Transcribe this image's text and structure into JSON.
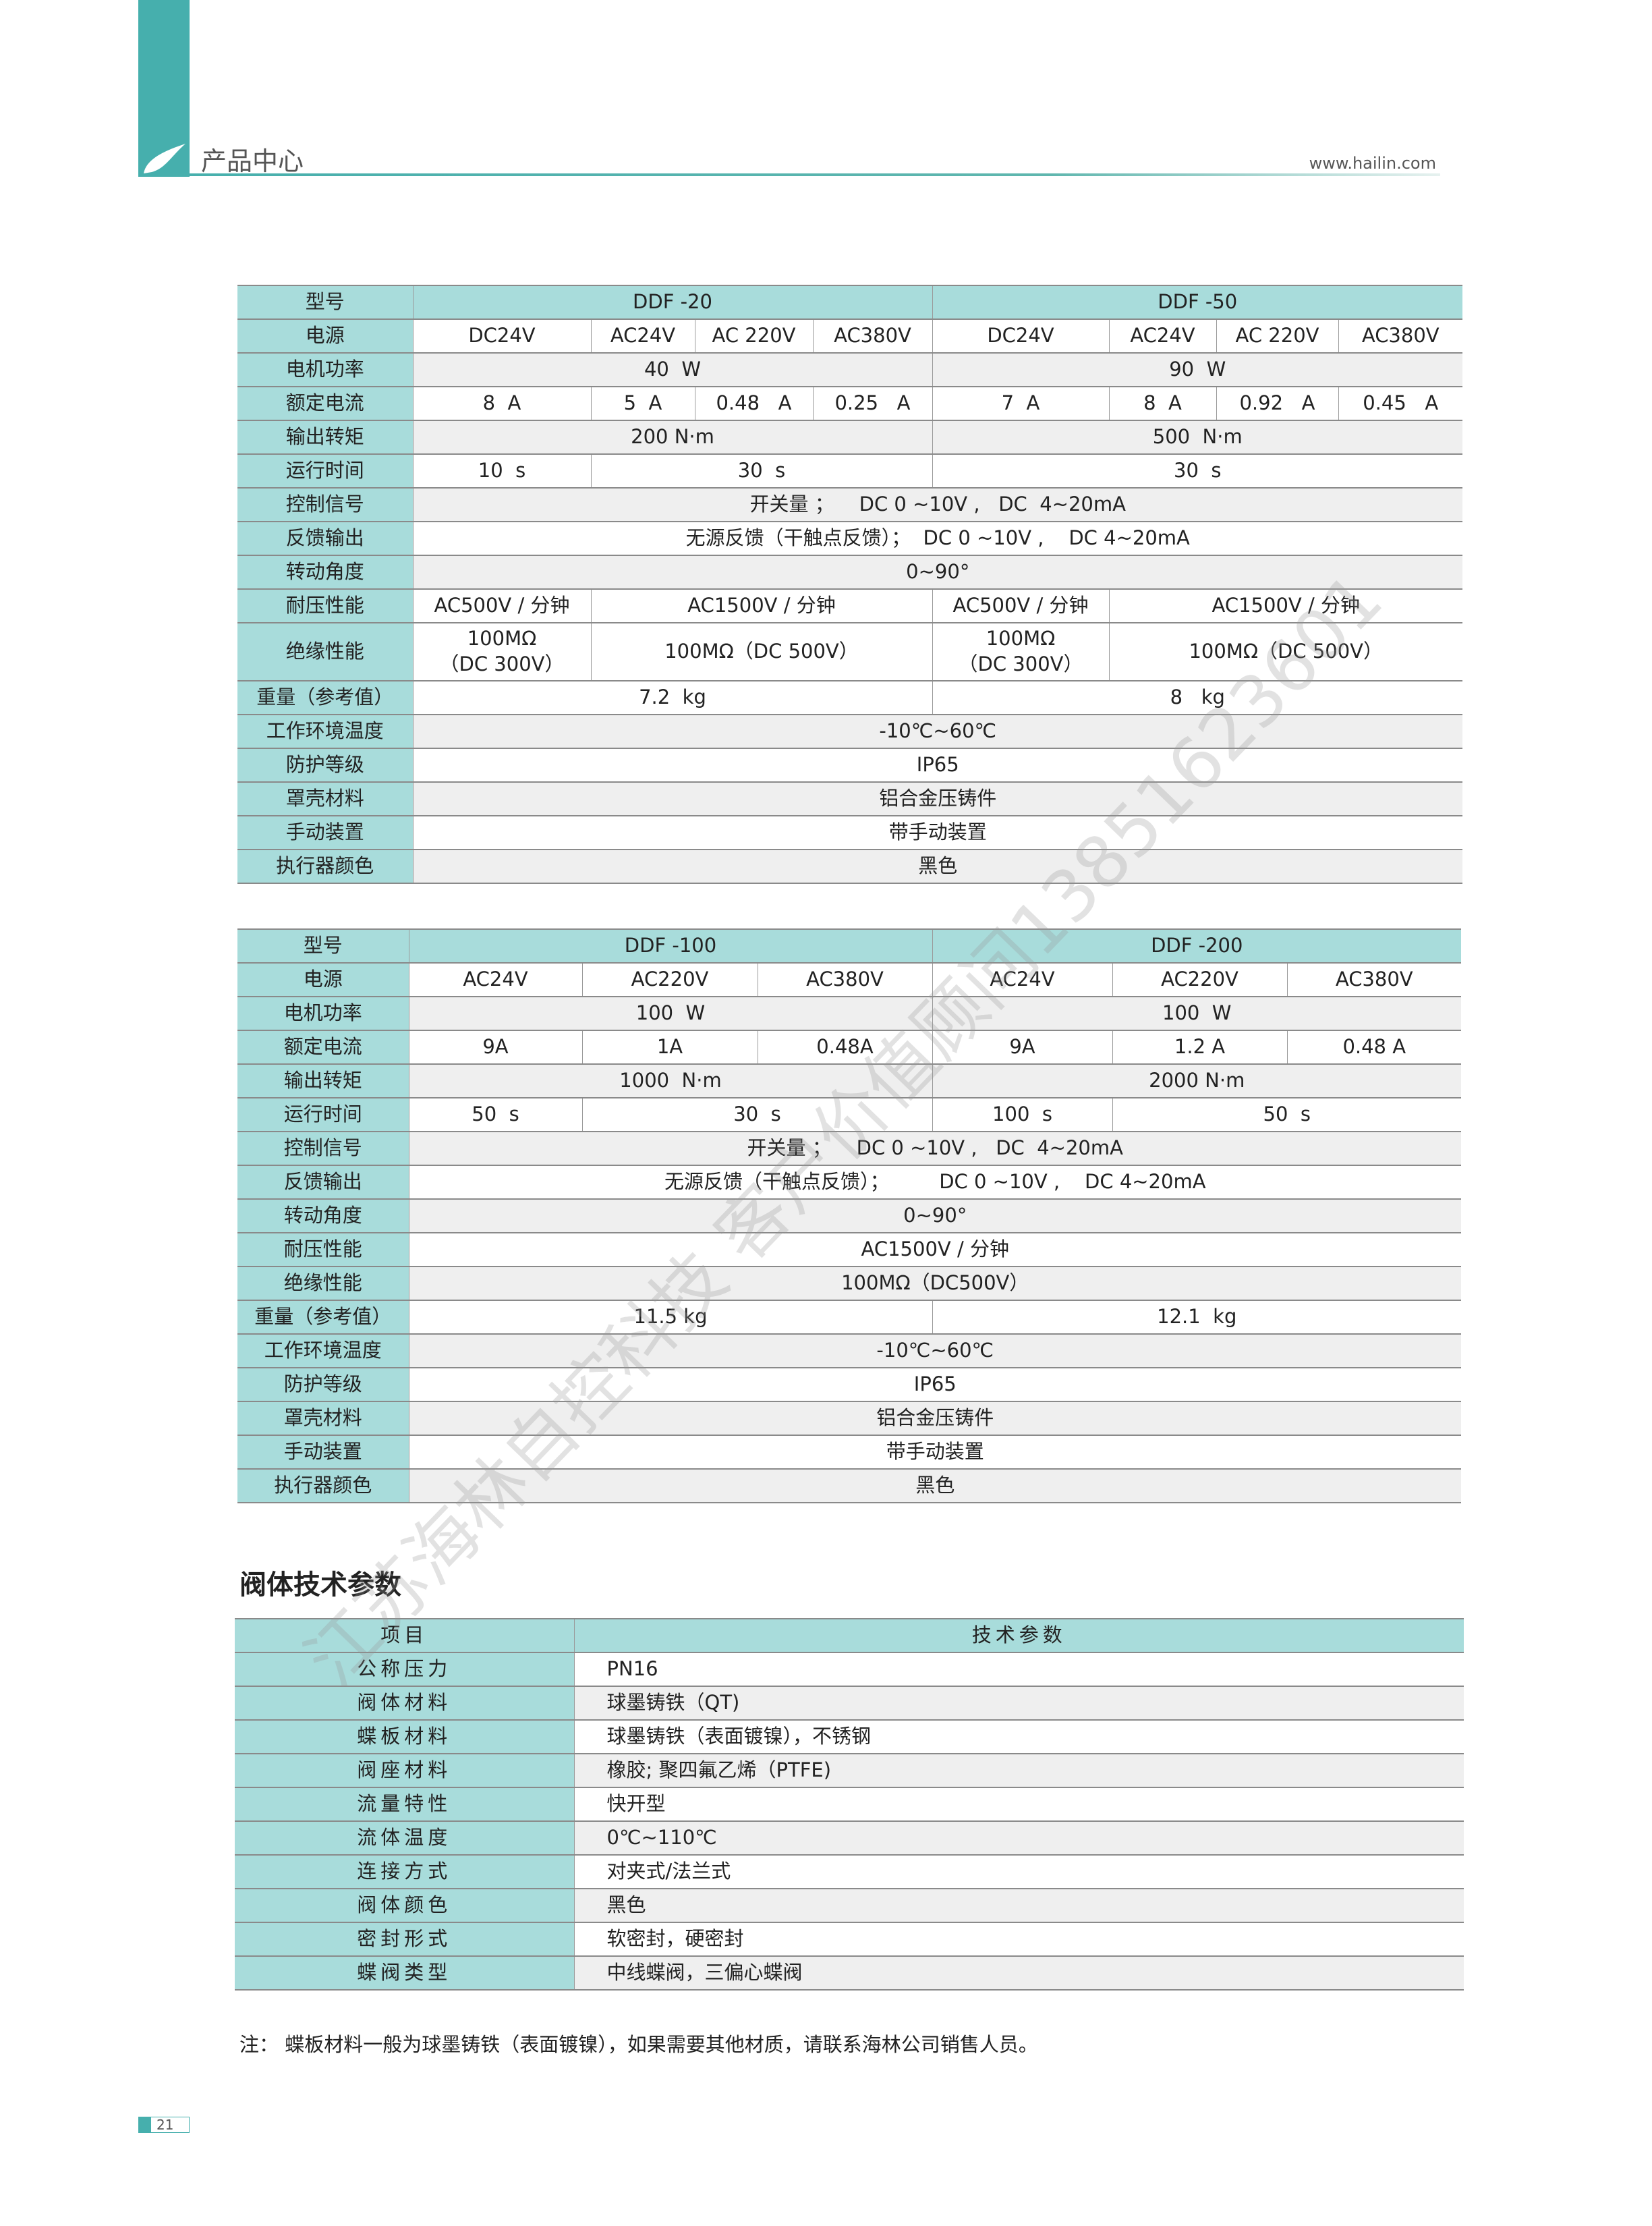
{
  "header": {
    "section": "产品中心",
    "website": "www.hailin.com"
  },
  "colors": {
    "accent": "#46afad",
    "label_bg": "#a8dcdb",
    "stripe": "#efefef"
  },
  "table1": {
    "rows": [
      {
        "label": "型号",
        "cls": "hd",
        "cells": [
          {
            "t": "DDF -20",
            "s": 4
          },
          {
            "t": "DDF -50",
            "s": 4
          }
        ]
      },
      {
        "label": "电源",
        "cells": [
          {
            "t": "DC24V"
          },
          {
            "t": "AC24V"
          },
          {
            "t": "AC 220V"
          },
          {
            "t": "AC380V"
          },
          {
            "t": "DC24V"
          },
          {
            "t": "AC24V"
          },
          {
            "t": "AC 220V"
          },
          {
            "t": "AC380V"
          }
        ]
      },
      {
        "label": "电机功率",
        "cls": "g",
        "cells": [
          {
            "t": "40  W",
            "s": 4
          },
          {
            "t": "90  W",
            "s": 4
          }
        ]
      },
      {
        "label": "额定电流",
        "cells": [
          {
            "t": "8  A"
          },
          {
            "t": "5  A"
          },
          {
            "t": "0.48   A"
          },
          {
            "t": "0.25   A"
          },
          {
            "t": "7  A"
          },
          {
            "t": "8  A"
          },
          {
            "t": "0.92   A"
          },
          {
            "t": "0.45   A"
          }
        ]
      },
      {
        "label": "输出转矩",
        "cls": "g",
        "cells": [
          {
            "t": "200 N·m",
            "s": 4
          },
          {
            "t": "500  N·m",
            "s": 4
          }
        ]
      },
      {
        "label": "运行时间",
        "cells": [
          {
            "t": "10  s"
          },
          {
            "t": "30  s",
            "s": 3
          },
          {
            "t": "30  s",
            "s": 4
          }
        ]
      },
      {
        "label": "控制信号",
        "cls": "g",
        "cells": [
          {
            "t": "开关量 ；    DC 0 ~10V ,   DC  4~20mA",
            "s": 8
          }
        ]
      },
      {
        "label": "反馈输出",
        "cells": [
          {
            "t": "无源反馈（干触点反馈）；  DC 0 ~10V ,    DC 4~20mA",
            "s": 8
          }
        ]
      },
      {
        "label": "转动角度",
        "cls": "g",
        "cells": [
          {
            "t": "0~90°",
            "s": 8
          }
        ]
      },
      {
        "label": "耐压性能",
        "cells": [
          {
            "t": "AC500V / 分钟"
          },
          {
            "t": "AC1500V / 分钟",
            "s": 3
          },
          {
            "t": "AC500V / 分钟"
          },
          {
            "t": "AC1500V / 分钟",
            "s": 3
          }
        ]
      },
      {
        "label": "绝缘性能",
        "tall": true,
        "cells": [
          {
            "t": "100MΩ\n（DC 300V）"
          },
          {
            "t": "100MΩ（DC 500V）",
            "s": 3
          },
          {
            "t": "100MΩ\n（DC 300V）"
          },
          {
            "t": "100MΩ（DC 500V）",
            "s": 3
          }
        ]
      },
      {
        "label": "重量（参考值）",
        "cells": [
          {
            "t": "7.2  kg",
            "s": 4
          },
          {
            "t": "8   kg",
            "s": 4
          }
        ]
      },
      {
        "label": "工作环境温度",
        "cls": "g",
        "cells": [
          {
            "t": "-10℃~60℃",
            "s": 8
          }
        ]
      },
      {
        "label": "防护等级",
        "cells": [
          {
            "t": "IP65",
            "s": 8
          }
        ]
      },
      {
        "label": "罩壳材料",
        "cls": "g",
        "cells": [
          {
            "t": "铝合金压铸件",
            "s": 8
          }
        ]
      },
      {
        "label": "手动装置",
        "cells": [
          {
            "t": "带手动装置",
            "s": 8
          }
        ]
      },
      {
        "label": "执行器颜色",
        "cls": "g",
        "cells": [
          {
            "t": "黑色",
            "s": 8
          }
        ]
      }
    ]
  },
  "table2": {
    "rows": [
      {
        "label": "型号",
        "cls": "hd",
        "cells": [
          {
            "t": "DDF -100",
            "s": 3
          },
          {
            "t": "DDF -200",
            "s": 3
          }
        ]
      },
      {
        "label": "电源",
        "cells": [
          {
            "t": "AC24V"
          },
          {
            "t": "AC220V"
          },
          {
            "t": "AC380V"
          },
          {
            "t": "AC24V"
          },
          {
            "t": "AC220V"
          },
          {
            "t": "AC380V"
          }
        ]
      },
      {
        "label": "电机功率",
        "cls": "g",
        "cells": [
          {
            "t": "100  W",
            "s": 3
          },
          {
            "t": "100  W",
            "s": 3
          }
        ]
      },
      {
        "label": "额定电流",
        "cells": [
          {
            "t": "9A"
          },
          {
            "t": "1A"
          },
          {
            "t": "0.48A"
          },
          {
            "t": "9A"
          },
          {
            "t": "1.2 A"
          },
          {
            "t": "0.48 A"
          }
        ]
      },
      {
        "label": "输出转矩",
        "cls": "g",
        "cells": [
          {
            "t": "1000  N·m",
            "s": 3
          },
          {
            "t": "2000 N·m",
            "s": 3
          }
        ]
      },
      {
        "label": "运行时间",
        "cells": [
          {
            "t": "50  s"
          },
          {
            "t": "30  s",
            "s": 2
          },
          {
            "t": "100  s"
          },
          {
            "t": "50  s",
            "s": 2
          }
        ]
      },
      {
        "label": "控制信号",
        "cls": "g",
        "cells": [
          {
            "t": "开关量 ；    DC 0 ~10V ,   DC  4~20mA",
            "s": 6
          }
        ]
      },
      {
        "label": "反馈输出",
        "cells": [
          {
            "t": "无源反馈（干触点反馈）；        DC 0 ~10V ,    DC 4~20mA",
            "s": 6
          }
        ]
      },
      {
        "label": "转动角度",
        "cls": "g",
        "cells": [
          {
            "t": "0~90°",
            "s": 6
          }
        ]
      },
      {
        "label": "耐压性能",
        "cells": [
          {
            "t": "AC1500V / 分钟",
            "s": 6
          }
        ]
      },
      {
        "label": "绝缘性能",
        "cls": "g",
        "cells": [
          {
            "t": "100MΩ（DC500V）",
            "s": 6
          }
        ]
      },
      {
        "label": "重量（参考值）",
        "cells": [
          {
            "t": "11.5 kg",
            "s": 3
          },
          {
            "t": "12.1  kg",
            "s": 3
          }
        ]
      },
      {
        "label": "工作环境温度",
        "cls": "g",
        "cells": [
          {
            "t": "-10℃~60℃",
            "s": 6
          }
        ]
      },
      {
        "label": "防护等级",
        "cells": [
          {
            "t": "IP65",
            "s": 6
          }
        ]
      },
      {
        "label": "罩壳材料",
        "cls": "g",
        "cells": [
          {
            "t": "铝合金压铸件",
            "s": 6
          }
        ]
      },
      {
        "label": "手动装置",
        "cells": [
          {
            "t": "带手动装置",
            "s": 6
          }
        ]
      },
      {
        "label": "执行器颜色",
        "cls": "g",
        "cells": [
          {
            "t": "黑色",
            "s": 6
          }
        ]
      }
    ]
  },
  "valve": {
    "title": "阀体技术参数",
    "header": {
      "item": "项目",
      "param": "技术参数"
    },
    "rows": [
      {
        "label": "公称压力",
        "value": "PN16"
      },
      {
        "label": "阀体材料",
        "value": "球墨铸铁（QT)"
      },
      {
        "label": "蝶板材料",
        "value": "球墨铸铁（表面镀镍），不锈钢"
      },
      {
        "label": "阀座材料",
        "value": "橡胶; 聚四氟乙烯（PTFE)"
      },
      {
        "label": "流量特性",
        "value": "快开型"
      },
      {
        "label": "流体温度",
        "value": "0℃~110℃"
      },
      {
        "label": "连接方式",
        "value": "对夹式/法兰式"
      },
      {
        "label": "阀体颜色",
        "value": "黑色"
      },
      {
        "label": "密封形式",
        "value": "软密封，硬密封"
      },
      {
        "label": "蝶阀类型",
        "value": "中线蝶阀，三偏心蝶阀"
      }
    ],
    "note": "注：  蝶板材料一般为球墨铸铁（表面镀镍），如果需要其他材质，请联系海林公司销售人员。"
  },
  "watermark": "江苏海林自控科技  客户价值顾问13851623601",
  "page_number": "21"
}
